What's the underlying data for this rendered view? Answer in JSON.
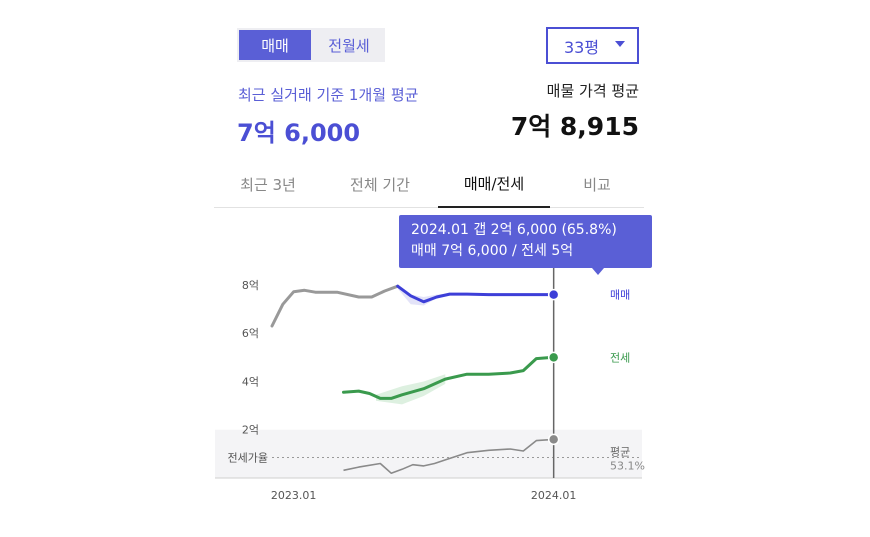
{
  "deal_toggle": {
    "options": [
      "매매",
      "전월세"
    ],
    "selected": 0
  },
  "size_select": {
    "value": "33평"
  },
  "recent": {
    "label": "최근 실거래 기준 1개월 평균",
    "value": "7억 6,000"
  },
  "listing": {
    "label": "매물 가격 평균",
    "value": "7억 8,915"
  },
  "tabs": [
    "최근 3년",
    "전체 기간",
    "매매/전세",
    "비교"
  ],
  "active_tab": 2,
  "tooltip": {
    "line1": "2024.01  갭 2억 6,000 (65.8%)",
    "line2": "매매 7억 6,000 / 전세 5억"
  },
  "colors": {
    "accent": "#5a5fd6",
    "sale": "#3d3fd8",
    "jeonse": "#3a9a4d",
    "avg": "#999999",
    "pre": "#999999"
  },
  "chart_data": {
    "type": "line",
    "x_ticks": [
      "2023.01",
      "2024.01"
    ],
    "y_ticks": [
      {
        "value": 8,
        "label": "8억"
      },
      {
        "value": 6,
        "label": "6억"
      },
      {
        "value": 4,
        "label": "4억"
      },
      {
        "value": 2,
        "label": "2억"
      }
    ],
    "ylim": [
      0,
      9.2
    ],
    "xlim": [
      -1,
      14
    ],
    "series": [
      {
        "name": "매매",
        "color": "#3d3fd8",
        "points": [
          [
            4.8,
            7.95
          ],
          [
            5.4,
            7.55
          ],
          [
            6.0,
            7.3
          ],
          [
            6.6,
            7.5
          ],
          [
            7.2,
            7.62
          ],
          [
            8.0,
            7.62
          ],
          [
            9.0,
            7.6
          ],
          [
            10.0,
            7.6
          ],
          [
            11.0,
            7.6
          ],
          [
            12.0,
            7.6
          ]
        ]
      },
      {
        "name": "전세",
        "color": "#3a9a4d",
        "points": [
          [
            2.3,
            3.55
          ],
          [
            3.0,
            3.6
          ],
          [
            3.5,
            3.5
          ],
          [
            4.0,
            3.3
          ],
          [
            4.5,
            3.3
          ],
          [
            5.0,
            3.45
          ],
          [
            6.0,
            3.7
          ],
          [
            7.0,
            4.1
          ],
          [
            8.0,
            4.3
          ],
          [
            9.0,
            4.3
          ],
          [
            10.0,
            4.35
          ],
          [
            10.6,
            4.45
          ],
          [
            11.2,
            4.95
          ],
          [
            12.0,
            5.0
          ]
        ]
      }
    ],
    "pre_sale_points": [
      [
        -1.0,
        6.3
      ],
      [
        -0.5,
        7.2
      ],
      [
        0.0,
        7.72
      ],
      [
        0.5,
        7.78
      ],
      [
        1.0,
        7.7
      ],
      [
        2.0,
        7.7
      ],
      [
        3.0,
        7.5
      ],
      [
        3.6,
        7.5
      ],
      [
        4.2,
        7.75
      ],
      [
        4.8,
        7.95
      ]
    ],
    "sale_band": [
      [
        4.8,
        7.95
      ],
      [
        5.4,
        7.6
      ],
      [
        6.0,
        7.5
      ],
      [
        6.6,
        7.6
      ],
      [
        7.2,
        7.65
      ],
      [
        6.6,
        7.45
      ],
      [
        6.0,
        7.15
      ],
      [
        5.4,
        7.2
      ],
      [
        4.8,
        7.85
      ]
    ],
    "jeonse_band": [
      [
        3.8,
        3.45
      ],
      [
        5.0,
        3.8
      ],
      [
        6.0,
        4.0
      ],
      [
        7.0,
        4.3
      ],
      [
        7.0,
        3.9
      ],
      [
        6.0,
        3.4
      ],
      [
        5.0,
        3.05
      ],
      [
        3.8,
        3.2
      ]
    ],
    "avg_series": {
      "name": "평균",
      "sub": "53.1%",
      "points": [
        [
          2.3,
          0.32
        ],
        [
          3.0,
          0.45
        ],
        [
          4.0,
          0.6
        ],
        [
          4.5,
          0.2
        ],
        [
          5.0,
          0.36
        ],
        [
          5.5,
          0.55
        ],
        [
          6.0,
          0.5
        ],
        [
          6.5,
          0.6
        ],
        [
          7.0,
          0.75
        ],
        [
          8.0,
          1.05
        ],
        [
          9.0,
          1.15
        ],
        [
          10.0,
          1.2
        ],
        [
          10.6,
          1.12
        ],
        [
          11.2,
          1.55
        ],
        [
          12.0,
          1.6
        ]
      ]
    },
    "ref_line": {
      "label": "전세가율",
      "value": 0.85
    },
    "ratio_zone_top": 2.0,
    "highlight_x": 12.0,
    "labels": {
      "sale": "매매",
      "jeonse": "전세"
    }
  }
}
